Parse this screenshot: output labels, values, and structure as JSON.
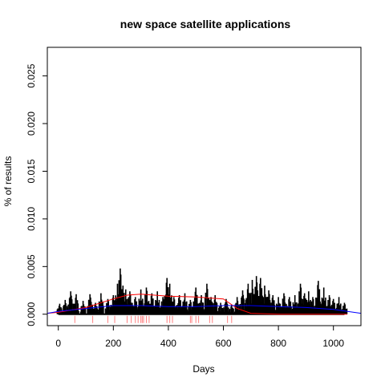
{
  "chart_data": {
    "type": "line",
    "title": "new space satellite applications",
    "xlabel": "Days",
    "ylabel": "% of results",
    "xlim": [
      -40,
      1100
    ],
    "ylim": [
      -0.0012,
      0.028
    ],
    "xticks": [
      0,
      200,
      400,
      600,
      800,
      1000
    ],
    "xtick_labels": [
      "0",
      "200",
      "400",
      "600",
      "800",
      "1000"
    ],
    "yticks": [
      0.0,
      0.005,
      0.01,
      0.015,
      0.02,
      0.025
    ],
    "ytick_labels": [
      "0.000",
      "0.005",
      "0.010",
      "0.015",
      "0.020",
      "0.025"
    ],
    "grid": false,
    "colors": {
      "series": "#000000",
      "smooth_red": "#ff0000",
      "smooth_blue": "#0000ff",
      "rug": "#ff8080"
    },
    "series": [
      {
        "style": "spikes",
        "x": [
          5,
          25,
          45,
          65,
          90,
          115,
          135,
          155,
          180,
          200,
          215,
          225,
          235,
          245,
          260,
          280,
          300,
          320,
          340,
          360,
          380,
          395,
          405,
          420,
          440,
          460,
          480,
          500,
          520,
          540,
          555,
          570,
          590,
          610,
          630,
          650,
          670,
          690,
          705,
          720,
          735,
          750,
          765,
          780,
          800,
          820,
          840,
          860,
          880,
          895,
          910,
          925,
          945,
          965,
          985,
          1000,
          1020,
          1040
        ],
        "values": [
          0.0011,
          0.0015,
          0.0024,
          0.0021,
          0.0014,
          0.0021,
          0.0012,
          0.0022,
          0.0016,
          0.002,
          0.0032,
          0.0048,
          0.003,
          0.0026,
          0.0024,
          0.0018,
          0.0026,
          0.0028,
          0.0022,
          0.0024,
          0.0018,
          0.0038,
          0.0032,
          0.0018,
          0.002,
          0.0022,
          0.0015,
          0.0028,
          0.002,
          0.0032,
          0.0018,
          0.002,
          0.0012,
          0.0016,
          0.001,
          0.0018,
          0.0025,
          0.0032,
          0.0036,
          0.004,
          0.0038,
          0.003,
          0.0025,
          0.002,
          0.0018,
          0.0022,
          0.0018,
          0.002,
          0.0032,
          0.0022,
          0.0024,
          0.0018,
          0.0035,
          0.0028,
          0.002,
          0.0016,
          0.0018,
          0.0012
        ]
      },
      {
        "style": "smooth",
        "color": "red",
        "x": [
          -40,
          0,
          100,
          200,
          250,
          300,
          400,
          500,
          600,
          650,
          700,
          800,
          900,
          1000,
          1050
        ],
        "values": [
          0.0001,
          0.0002,
          0.0007,
          0.0016,
          0.002,
          0.0021,
          0.0019,
          0.0018,
          0.0016,
          0.0006,
          0.0001,
          0.0,
          0.0,
          0.0,
          0.0
        ]
      },
      {
        "style": "smooth",
        "color": "blue",
        "x": [
          -40,
          0,
          100,
          200,
          300,
          400,
          500,
          600,
          700,
          800,
          900,
          1000,
          1100
        ],
        "values": [
          0.0001,
          0.0003,
          0.0006,
          0.0009,
          0.0009,
          0.0008,
          0.0008,
          0.0009,
          0.0009,
          0.0008,
          0.0007,
          0.0005,
          0.0001
        ]
      }
    ],
    "rug_x": [
      60,
      125,
      180,
      205,
      250,
      265,
      280,
      290,
      300,
      305,
      310,
      320,
      330,
      395,
      405,
      415,
      480,
      485,
      500,
      510,
      550,
      560,
      615,
      630
    ]
  }
}
